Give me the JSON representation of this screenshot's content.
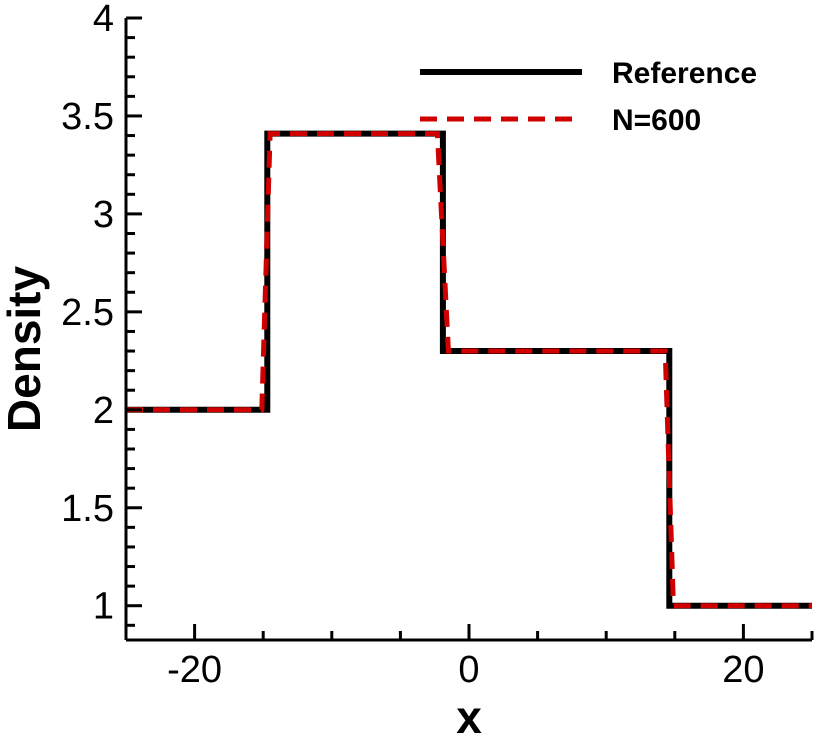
{
  "chart_data": {
    "type": "line",
    "xlabel": "x",
    "ylabel": "Density",
    "xlim": [
      -25,
      25
    ],
    "ylim": [
      0.825,
      4
    ],
    "x_ticks": [
      -20,
      0,
      20
    ],
    "x_tick_labels": [
      "-20",
      "0",
      "20"
    ],
    "y_ticks": [
      1,
      1.5,
      2,
      2.5,
      3,
      3.5,
      4
    ],
    "y_tick_labels": [
      "1",
      "1.5",
      "2",
      "2.5",
      "3",
      "3.5",
      "4"
    ],
    "legend_position": "top-right",
    "grid": false,
    "series": [
      {
        "name": "Reference",
        "color": "#000000",
        "style": "solid",
        "x": [
          -25,
          -14.7,
          -14.7,
          -1.9,
          -1.9,
          14.6,
          14.6,
          25
        ],
        "y": [
          2.0,
          2.0,
          3.41,
          3.41,
          2.3,
          2.3,
          1.0,
          1.0
        ]
      },
      {
        "name": "N=600",
        "color": "#d00000",
        "style": "dashed",
        "x": [
          -25,
          -15.1,
          -14.5,
          -2.3,
          -1.5,
          14.3,
          14.9,
          25
        ],
        "y": [
          2.0,
          2.0,
          3.41,
          3.41,
          2.3,
          2.3,
          1.0,
          1.0
        ]
      }
    ]
  }
}
